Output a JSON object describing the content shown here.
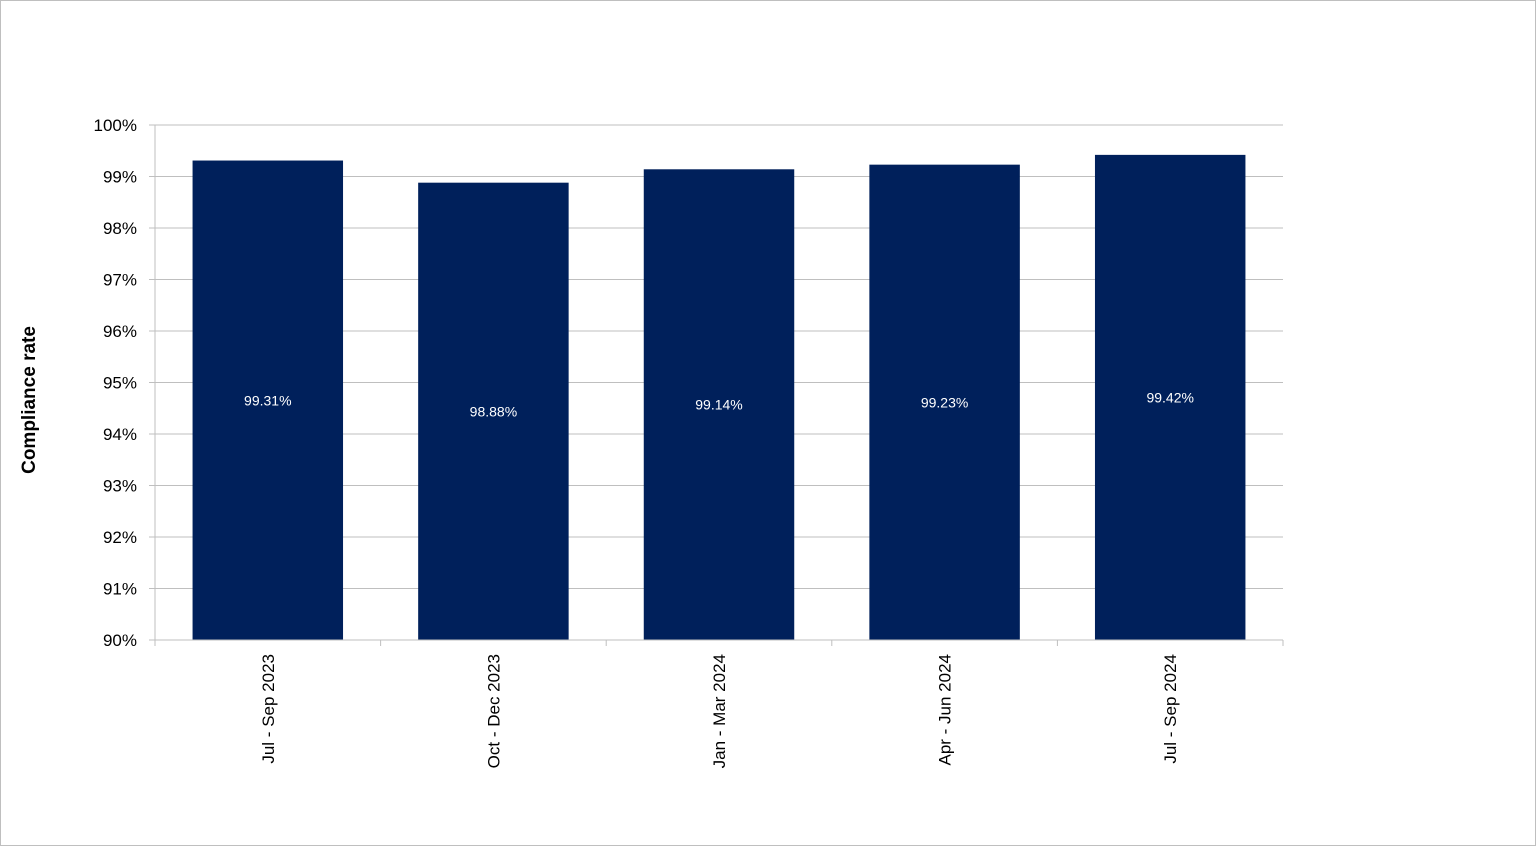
{
  "chart_data": {
    "type": "bar",
    "title": "",
    "xlabel": "",
    "ylabel": "Compliance rate",
    "categories": [
      "Jul - Sep 2023",
      "Oct - Dec 2023",
      "Jan - Mar 2024",
      "Apr - Jun 2024",
      "Jul - Sep 2024"
    ],
    "values": [
      99.31,
      98.88,
      99.14,
      99.23,
      99.42
    ],
    "data_labels": [
      "99.31%",
      "98.88%",
      "99.14%",
      "99.23%",
      "99.42%"
    ],
    "ylim": [
      90,
      100
    ],
    "y_ticks": [
      90,
      91,
      92,
      93,
      94,
      95,
      96,
      97,
      98,
      99,
      100
    ],
    "y_tick_labels": [
      "90%",
      "91%",
      "92%",
      "93%",
      "94%",
      "95%",
      "96%",
      "97%",
      "98%",
      "99%",
      "100%"
    ],
    "grid": true,
    "legend": "none",
    "bar_color": "#00205b",
    "grid_color": "#bfbfbf"
  }
}
